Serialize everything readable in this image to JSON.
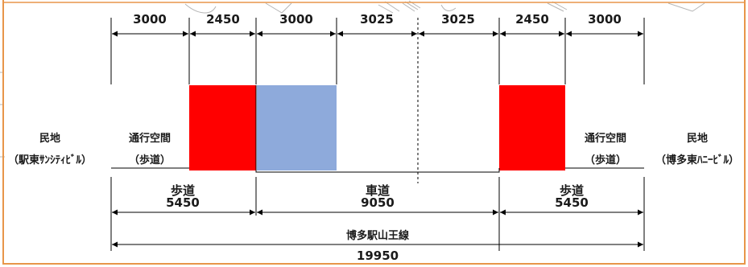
{
  "colors": {
    "frame": "#e8964a",
    "sidewalk_block": "#ff0000",
    "roadway_block": "#8eaadb",
    "line": "#000000",
    "background_sketch": "#b0b0b0"
  },
  "top_dimensions": [
    "3000",
    "2450",
    "3000",
    "3025",
    "3025",
    "2450",
    "3000"
  ],
  "left_labels": {
    "land": "民地",
    "land_owner": "（駅東ｻﾝｼﾃｨﾋﾞﾙ）",
    "passage": "通行空間",
    "passage_type": "（歩道）"
  },
  "right_labels": {
    "passage": "通行空間",
    "passage_type": "（歩道）",
    "land": "民地",
    "land_owner": "（博多東ﾊﾆｰﾋﾞﾙ）"
  },
  "bottom_sections": {
    "left_sidewalk": {
      "name": "歩道",
      "width": "5450"
    },
    "roadway": {
      "name": "車道",
      "width": "9050"
    },
    "right_sidewalk": {
      "name": "歩道",
      "width": "5450"
    }
  },
  "road_name": "博多駅山王線",
  "total_width": "19950"
}
